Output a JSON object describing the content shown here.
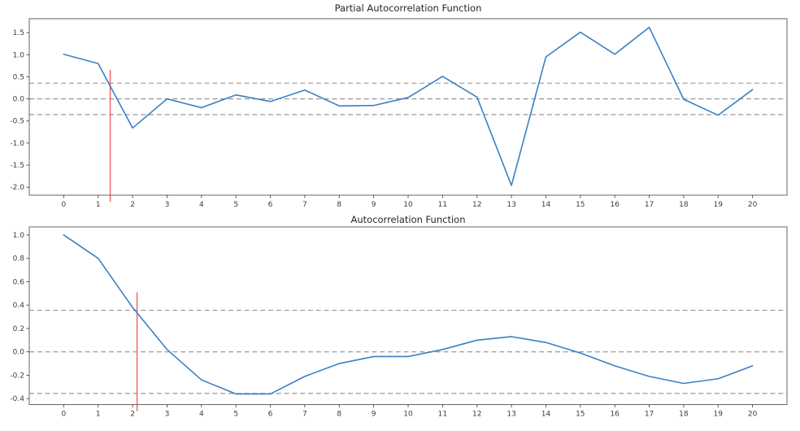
{
  "figure": {
    "background": "#ffffff",
    "spine_color": "#666666",
    "tick_color": "#444444",
    "label_color": "#3c3c3c"
  },
  "chart_data": [
    {
      "type": "line",
      "title": "Partial Autocorrelation Function",
      "xlabel": "",
      "ylabel": "",
      "x": [
        0,
        1,
        2,
        3,
        4,
        5,
        6,
        7,
        8,
        9,
        10,
        11,
        12,
        13,
        14,
        15,
        16,
        17,
        18,
        19,
        20
      ],
      "values": [
        1.01,
        0.8,
        -0.66,
        0.0,
        -0.2,
        0.09,
        -0.06,
        0.2,
        -0.16,
        -0.15,
        0.03,
        0.51,
        0.04,
        -1.96,
        0.95,
        1.51,
        1.01,
        1.62,
        -0.01,
        -0.37,
        0.21
      ],
      "x_tick_labels": [
        "0",
        "1",
        "2",
        "3",
        "4",
        "5",
        "6",
        "7",
        "8",
        "9",
        "10",
        "11",
        "12",
        "13",
        "14",
        "15",
        "16",
        "17",
        "18",
        "19",
        "20"
      ],
      "y_ticks": [
        1.5,
        1.0,
        0.5,
        0.0,
        -0.5,
        -1.0,
        -1.5,
        -2.0
      ],
      "y_tick_labels": [
        "1.5",
        "1.0",
        "0.5",
        "0.0",
        "-0.5",
        "-1.0",
        "-1.5",
        "-2.0"
      ],
      "xlim": [
        -1,
        21
      ],
      "ylim": [
        -2.18,
        1.815
      ],
      "grid": false,
      "legend": "none",
      "conf_band_levels": [
        0.356,
        0.0,
        -0.356
      ],
      "marker_line": {
        "x": 1.35,
        "y_top": 0.66
      },
      "line_color": "#3c80c4",
      "marker_line_color": "#f46c6c",
      "band_color": "#8f8f8f"
    },
    {
      "type": "line",
      "title": "Autocorrelation Function",
      "xlabel": "",
      "ylabel": "",
      "x": [
        0,
        1,
        2,
        3,
        4,
        5,
        6,
        7,
        8,
        9,
        10,
        11,
        12,
        13,
        14,
        15,
        16,
        17,
        18,
        19,
        20
      ],
      "values": [
        1.0,
        0.8,
        0.38,
        0.02,
        -0.24,
        -0.36,
        -0.36,
        -0.21,
        -0.1,
        -0.04,
        -0.04,
        0.02,
        0.1,
        0.13,
        0.08,
        -0.01,
        -0.12,
        -0.21,
        -0.27,
        -0.23,
        -0.12
      ],
      "x_tick_labels": [
        "0",
        "1",
        "2",
        "3",
        "4",
        "5",
        "6",
        "7",
        "8",
        "9",
        "10",
        "11",
        "12",
        "13",
        "14",
        "15",
        "16",
        "17",
        "18",
        "19",
        "20"
      ],
      "y_ticks": [
        1.0,
        0.8,
        0.6,
        0.4,
        0.2,
        0.0,
        -0.2,
        -0.4
      ],
      "y_tick_labels": [
        "1.0",
        "0.8",
        "0.6",
        "0.4",
        "0.2",
        "0.0",
        "-0.2",
        "-0.4"
      ],
      "xlim": [
        -1,
        21
      ],
      "ylim": [
        -0.451,
        1.069
      ],
      "grid": false,
      "legend": "none",
      "conf_band_levels": [
        0.356,
        0.0,
        -0.356
      ],
      "marker_line": {
        "x": 2.13,
        "y_top": 0.51
      },
      "line_color": "#3c80c4",
      "marker_line_color": "#f46c6c",
      "band_color": "#8f8f8f"
    }
  ]
}
